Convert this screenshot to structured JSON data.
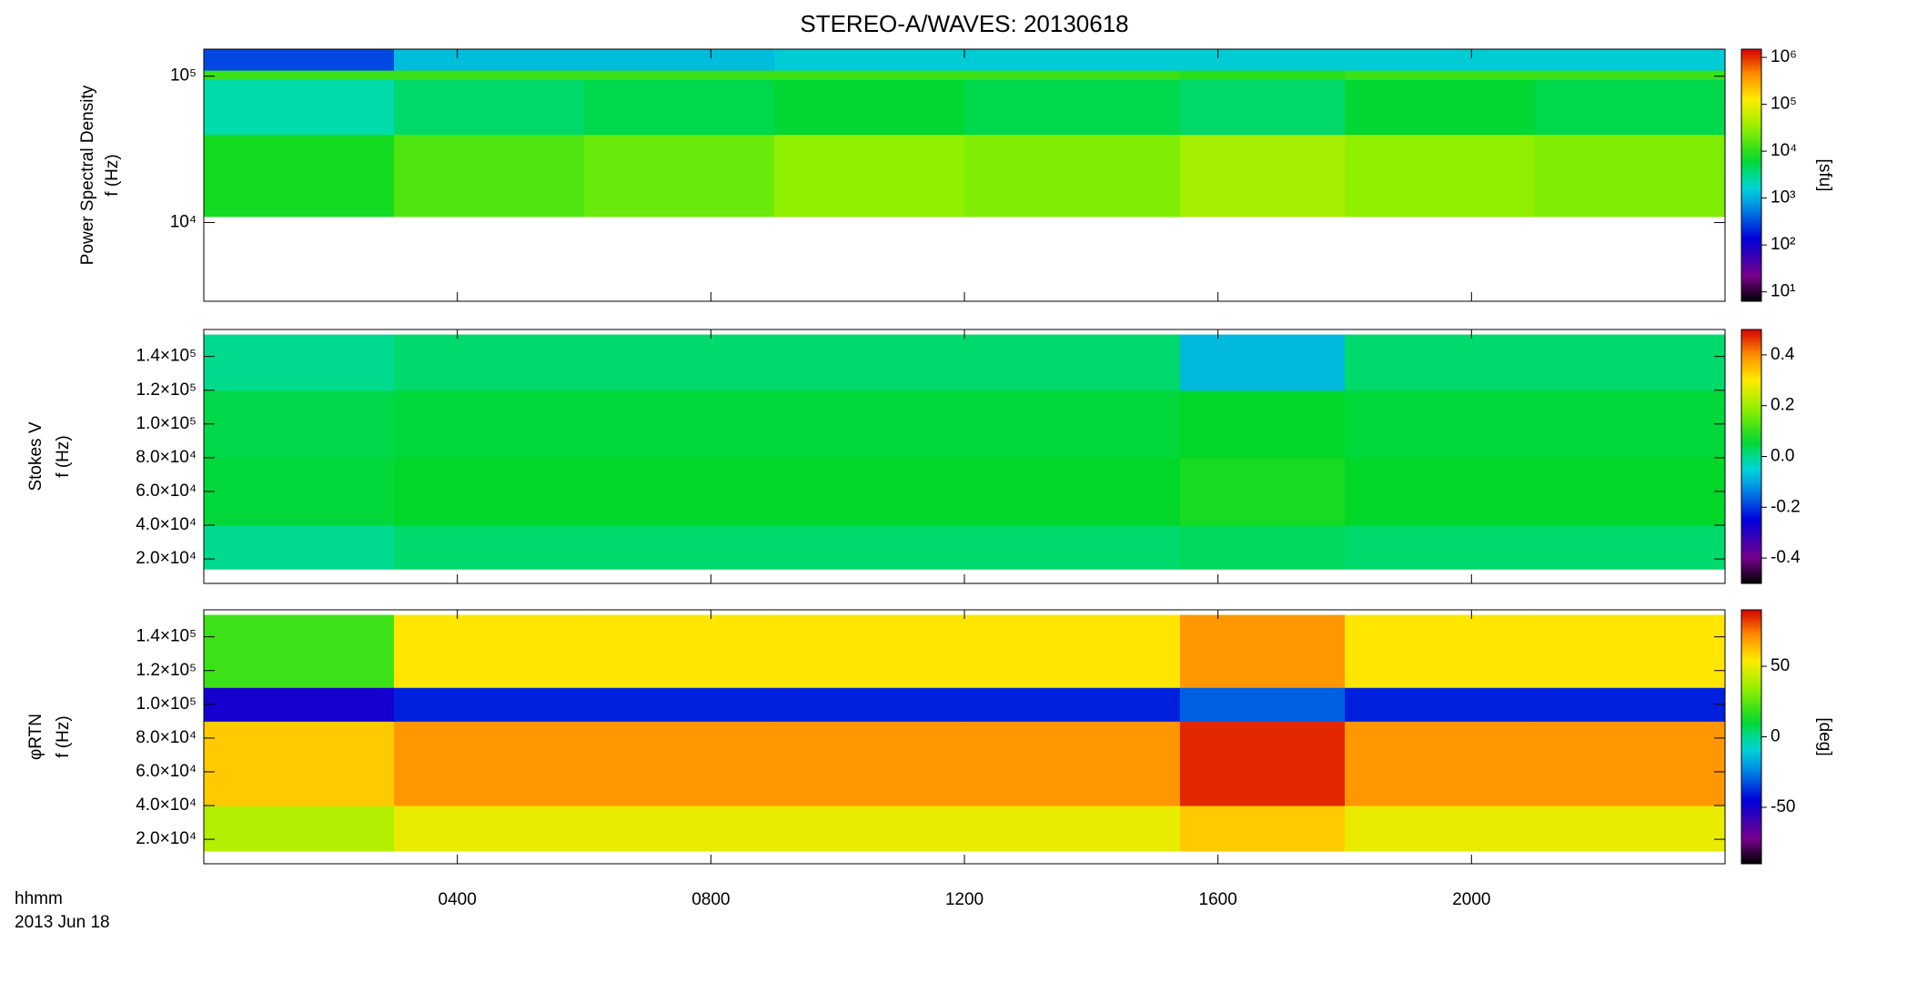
{
  "chart_data": [
    {
      "type": "heatmap",
      "title": "STEREO-A/WAVES: 20130618",
      "ylabel": [
        "Power Spectral Density",
        "f (Hz)"
      ],
      "zlabel": "[sfu]",
      "colormap": "rainbow",
      "ylog": true,
      "zlog": true,
      "xlim": [
        0,
        24
      ],
      "ylim": [
        2900,
        153000
      ],
      "zlim": [
        6.3,
        1500000
      ],
      "yticks": [
        {
          "value": 10000,
          "label": "10⁴"
        },
        {
          "value": 100000,
          "label": "10⁵"
        }
      ],
      "zticks": [
        {
          "value": 10,
          "label": "10¹"
        },
        {
          "value": 100,
          "label": "10²"
        },
        {
          "value": 1000,
          "label": "10³"
        },
        {
          "value": 10000,
          "label": "10⁴"
        },
        {
          "value": 100000,
          "label": "10⁵"
        },
        {
          "value": 1000000,
          "label": "10⁶"
        }
      ],
      "xbins": [
        0,
        3,
        6,
        9,
        12,
        15.4,
        18,
        21,
        24
      ],
      "ybins": [
        11000,
        40000,
        95000,
        110000,
        153000
      ],
      "values": [
        [
          8000,
          15000,
          20000,
          30000,
          25000,
          40000,
          30000,
          25000
        ],
        [
          2500,
          4000,
          5000,
          6000,
          5000,
          4000,
          6000,
          5000
        ],
        [
          12000,
          12000,
          12000,
          12000,
          12000,
          10000,
          12000,
          12000
        ],
        [
          300,
          1200,
          1200,
          1500,
          1500,
          1500,
          1500,
          1500
        ]
      ]
    },
    {
      "type": "heatmap",
      "ylabel": [
        "Stokes V",
        "f (Hz)"
      ],
      "colormap": "rainbow",
      "xlim": [
        0,
        24
      ],
      "ylim": [
        5500,
        156000
      ],
      "zlim": [
        -0.5,
        0.5
      ],
      "yticks": [
        {
          "value": 20000,
          "label": "2.0×10⁴"
        },
        {
          "value": 40000,
          "label": "4.0×10⁴"
        },
        {
          "value": 60000,
          "label": "6.0×10⁴"
        },
        {
          "value": 80000,
          "label": "8.0×10⁴"
        },
        {
          "value": 100000,
          "label": "1.0×10⁵"
        },
        {
          "value": 120000,
          "label": "1.2×10⁵"
        },
        {
          "value": 140000,
          "label": "1.4×10⁵"
        }
      ],
      "zticks": [
        -0.4,
        -0.2,
        {
          "value": 0,
          "label": "0.0"
        },
        0.2,
        0.4
      ],
      "xbins": [
        0,
        3,
        6,
        9,
        12,
        15.4,
        18,
        21,
        24
      ],
      "ybins": [
        14000,
        40000,
        80000,
        120000,
        153000
      ],
      "values": [
        [
          0.0,
          0.02,
          0.02,
          0.02,
          0.02,
          0.03,
          0.02,
          0.02
        ],
        [
          0.05,
          0.06,
          0.06,
          0.06,
          0.06,
          0.08,
          0.06,
          0.06
        ],
        [
          0.04,
          0.05,
          0.05,
          0.05,
          0.05,
          0.06,
          0.05,
          0.05
        ],
        [
          0.0,
          0.02,
          0.02,
          0.02,
          0.02,
          -0.08,
          0.02,
          0.02
        ]
      ]
    },
    {
      "type": "heatmap",
      "ylabel": [
        "φRTN",
        "f (Hz)"
      ],
      "zlabel": "[deg]",
      "colormap": "rainbow",
      "xlim": [
        0,
        24
      ],
      "ylim": [
        5500,
        156000
      ],
      "zlim": [
        -90,
        90
      ],
      "yticks": [
        {
          "value": 20000,
          "label": "2.0×10⁴"
        },
        {
          "value": 40000,
          "label": "4.0×10⁴"
        },
        {
          "value": 60000,
          "label": "6.0×10⁴"
        },
        {
          "value": 80000,
          "label": "8.0×10⁴"
        },
        {
          "value": 100000,
          "label": "1.0×10⁵"
        },
        {
          "value": 120000,
          "label": "1.2×10⁵"
        },
        {
          "value": 140000,
          "label": "1.4×10⁵"
        }
      ],
      "zticks": [
        -50,
        0,
        50
      ],
      "xticks": [
        {
          "value": 4,
          "label": "0400"
        },
        {
          "value": 8,
          "label": "0800"
        },
        {
          "value": 12,
          "label": "1200"
        },
        {
          "value": 16,
          "label": "1600"
        },
        {
          "value": 20,
          "label": "2000"
        }
      ],
      "xlabel": "hhmm",
      "date": "2013 Jun 18",
      "xbins": [
        0,
        3,
        6,
        9,
        12,
        15.4,
        18,
        21,
        24
      ],
      "ybins": [
        13000,
        40000,
        90000,
        110000,
        153000
      ],
      "values": [
        [
          40,
          50,
          50,
          50,
          50,
          60,
          50,
          50
        ],
        [
          60,
          70,
          70,
          70,
          70,
          85,
          70,
          70
        ],
        [
          -50,
          -40,
          -40,
          -40,
          -40,
          -30,
          -40,
          -40
        ],
        [
          20,
          55,
          55,
          55,
          55,
          70,
          55,
          55
        ]
      ]
    }
  ]
}
